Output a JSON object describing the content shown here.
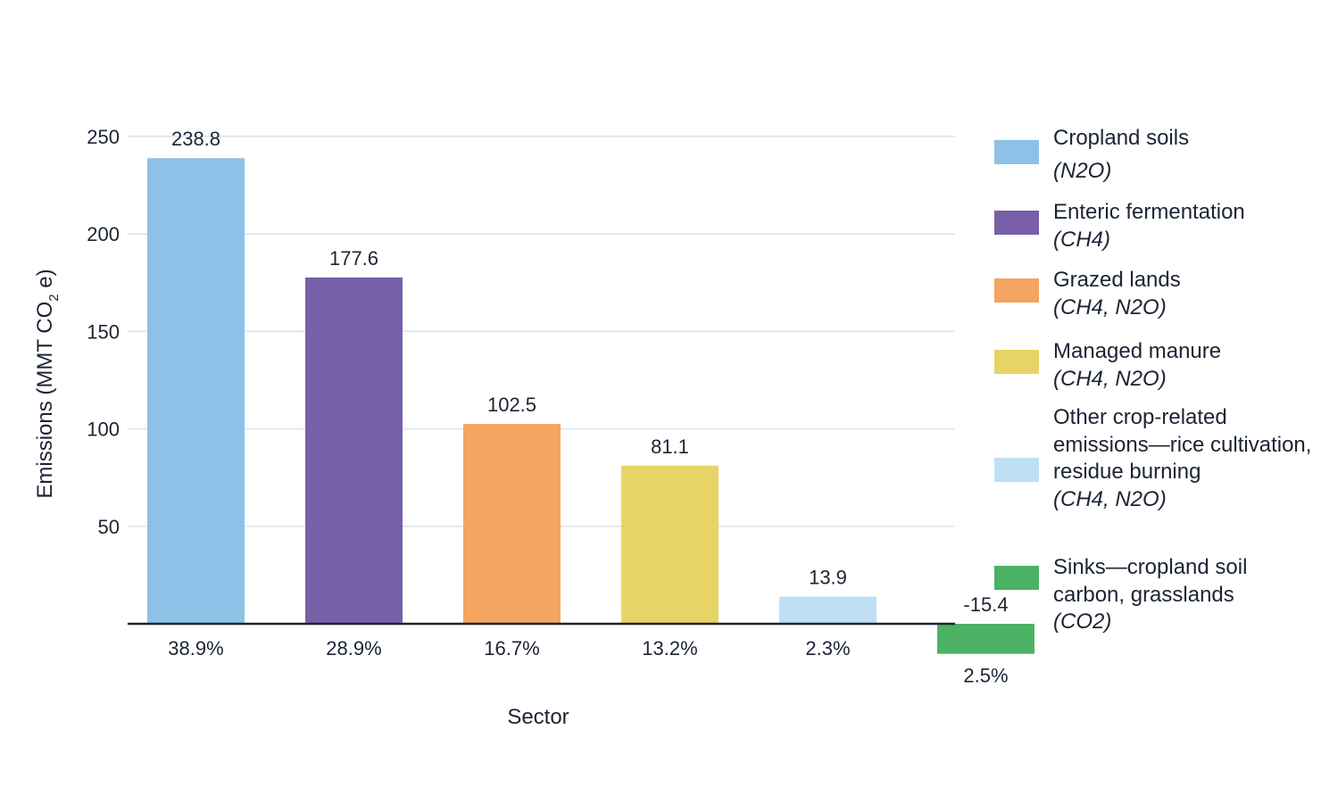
{
  "chart_data": {
    "type": "bar",
    "xlabel": "Sector",
    "ylabel_parts": {
      "before": "Emissions (MMT CO",
      "subscript": "2",
      "after": " e)"
    },
    "yticks": [
      50,
      100,
      150,
      200,
      250
    ],
    "ylim": [
      -20,
      255
    ],
    "grid": true,
    "legend_position": "right",
    "categories": [
      "Cropland soils",
      "Enteric fermentation",
      "Grazed lands",
      "Managed manure",
      "Other crop-related emissions—rice cultivation, residue burning",
      "Sinks—cropland soil carbon, grasslands"
    ],
    "values": [
      238.8,
      177.6,
      102.5,
      81.1,
      13.9,
      -15.4
    ],
    "value_labels": [
      "238.8",
      "177.6",
      "102.5",
      "81.1",
      "13.9",
      "-15.4"
    ],
    "share_labels": [
      "38.9%",
      "28.9%",
      "16.7%",
      "13.2%",
      "2.3%",
      "2.5%"
    ],
    "colors": [
      "#8ec1e8",
      "#7760a8",
      "#f4a560",
      "#e8d466",
      "#bfdff5",
      "#4cb264"
    ],
    "legend": [
      {
        "name": "Cropland soils",
        "gas": "(N2O)",
        "color": "#8ec1e8"
      },
      {
        "name": "Enteric fermentation",
        "gas": "(CH4)",
        "color": "#7760a8"
      },
      {
        "name": "Grazed lands",
        "gas": "(CH4, N2O)",
        "color": "#f4a560"
      },
      {
        "name": "Managed manure",
        "gas": "(CH4, N2O)",
        "color": "#e8d466"
      },
      {
        "name": "Other crop-related emissions—rice cultivation, residue burning",
        "gas": "(CH4, N2O)",
        "color": "#bfdff5"
      },
      {
        "name": "Sinks—cropland soil carbon, grasslands",
        "gas": "(CO2)",
        "color": "#4cb264"
      }
    ]
  }
}
